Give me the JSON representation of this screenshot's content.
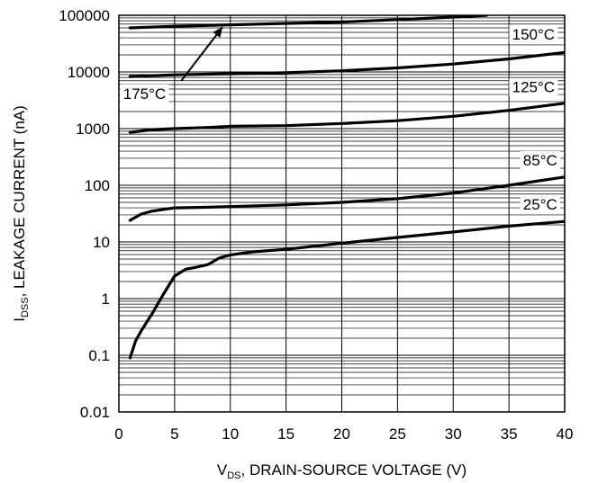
{
  "chart_data": {
    "type": "line",
    "title": "",
    "xlabel": {
      "main": "V",
      "sub": "DS",
      "rest": ", DRAIN-SOURCE VOLTAGE (V)"
    },
    "ylabel": {
      "main": "I",
      "sub": "DSS",
      "rest": ", LEAKAGE CURRENT (nA)"
    },
    "xlim": [
      0,
      40
    ],
    "ylim": [
      0.01,
      100000
    ],
    "yscale": "log",
    "grid": true,
    "x_ticks": [
      {
        "value": 0,
        "label": "0"
      },
      {
        "value": 5,
        "label": "5"
      },
      {
        "value": 10,
        "label": "10"
      },
      {
        "value": 15,
        "label": "15"
      },
      {
        "value": 20,
        "label": "20"
      },
      {
        "value": 25,
        "label": "25"
      },
      {
        "value": 30,
        "label": "30"
      },
      {
        "value": 35,
        "label": "35"
      },
      {
        "value": 40,
        "label": "40"
      }
    ],
    "y_ticks": [
      {
        "value": 0.01,
        "label": "0.01"
      },
      {
        "value": 0.1,
        "label": "0.1"
      },
      {
        "value": 1,
        "label": "1"
      },
      {
        "value": 10,
        "label": "10"
      },
      {
        "value": 100,
        "label": "100"
      },
      {
        "value": 1000,
        "label": "1000"
      },
      {
        "value": 10000,
        "label": "10000"
      },
      {
        "value": 100000,
        "label": "100000"
      }
    ],
    "series": [
      {
        "name": "25°C",
        "points": [
          [
            1,
            0.09
          ],
          [
            1.5,
            0.18
          ],
          [
            2,
            0.27
          ],
          [
            3,
            0.55
          ],
          [
            4,
            1.2
          ],
          [
            5,
            2.5
          ],
          [
            6,
            3.3
          ],
          [
            7,
            3.6
          ],
          [
            8,
            4.0
          ],
          [
            9,
            5.2
          ],
          [
            10,
            5.9
          ],
          [
            12,
            6.7
          ],
          [
            15,
            7.4
          ],
          [
            20,
            9.5
          ],
          [
            25,
            12
          ],
          [
            30,
            15
          ],
          [
            35,
            19
          ],
          [
            40,
            23
          ]
        ]
      },
      {
        "name": "85°C",
        "points": [
          [
            1,
            24
          ],
          [
            2,
            31
          ],
          [
            3,
            35
          ],
          [
            5,
            40
          ],
          [
            8,
            41
          ],
          [
            10,
            42
          ],
          [
            15,
            45
          ],
          [
            20,
            50
          ],
          [
            25,
            58
          ],
          [
            30,
            73
          ],
          [
            35,
            100
          ],
          [
            40,
            140
          ]
        ]
      },
      {
        "name": "125°C",
        "points": [
          [
            1,
            860
          ],
          [
            3,
            960
          ],
          [
            5,
            1000
          ],
          [
            8,
            1050
          ],
          [
            10,
            1100
          ],
          [
            15,
            1130
          ],
          [
            20,
            1230
          ],
          [
            25,
            1380
          ],
          [
            30,
            1650
          ],
          [
            35,
            2100
          ],
          [
            40,
            2800
          ]
        ]
      },
      {
        "name": "150°C",
        "points": [
          [
            1,
            8300
          ],
          [
            5,
            8900
          ],
          [
            10,
            9300
          ],
          [
            15,
            9700
          ],
          [
            20,
            10500
          ],
          [
            25,
            11800
          ],
          [
            30,
            13800
          ],
          [
            35,
            17000
          ],
          [
            40,
            22000
          ]
        ]
      },
      {
        "name": "175°C",
        "points": [
          [
            1,
            60000
          ],
          [
            5,
            64000
          ],
          [
            10,
            68000
          ],
          [
            15,
            72000
          ],
          [
            20,
            76000
          ],
          [
            25,
            84000
          ],
          [
            30,
            93000
          ],
          [
            33,
            100000
          ]
        ]
      }
    ],
    "annotations": [
      {
        "text": "150°C",
        "series": "150°C"
      },
      {
        "text": "125°C",
        "series": "125°C"
      },
      {
        "text": "85°C",
        "series": "85°C"
      },
      {
        "text": "25°C",
        "series": "25°C"
      },
      {
        "text": "175°C",
        "series": "175°C",
        "arrow": true
      }
    ]
  }
}
